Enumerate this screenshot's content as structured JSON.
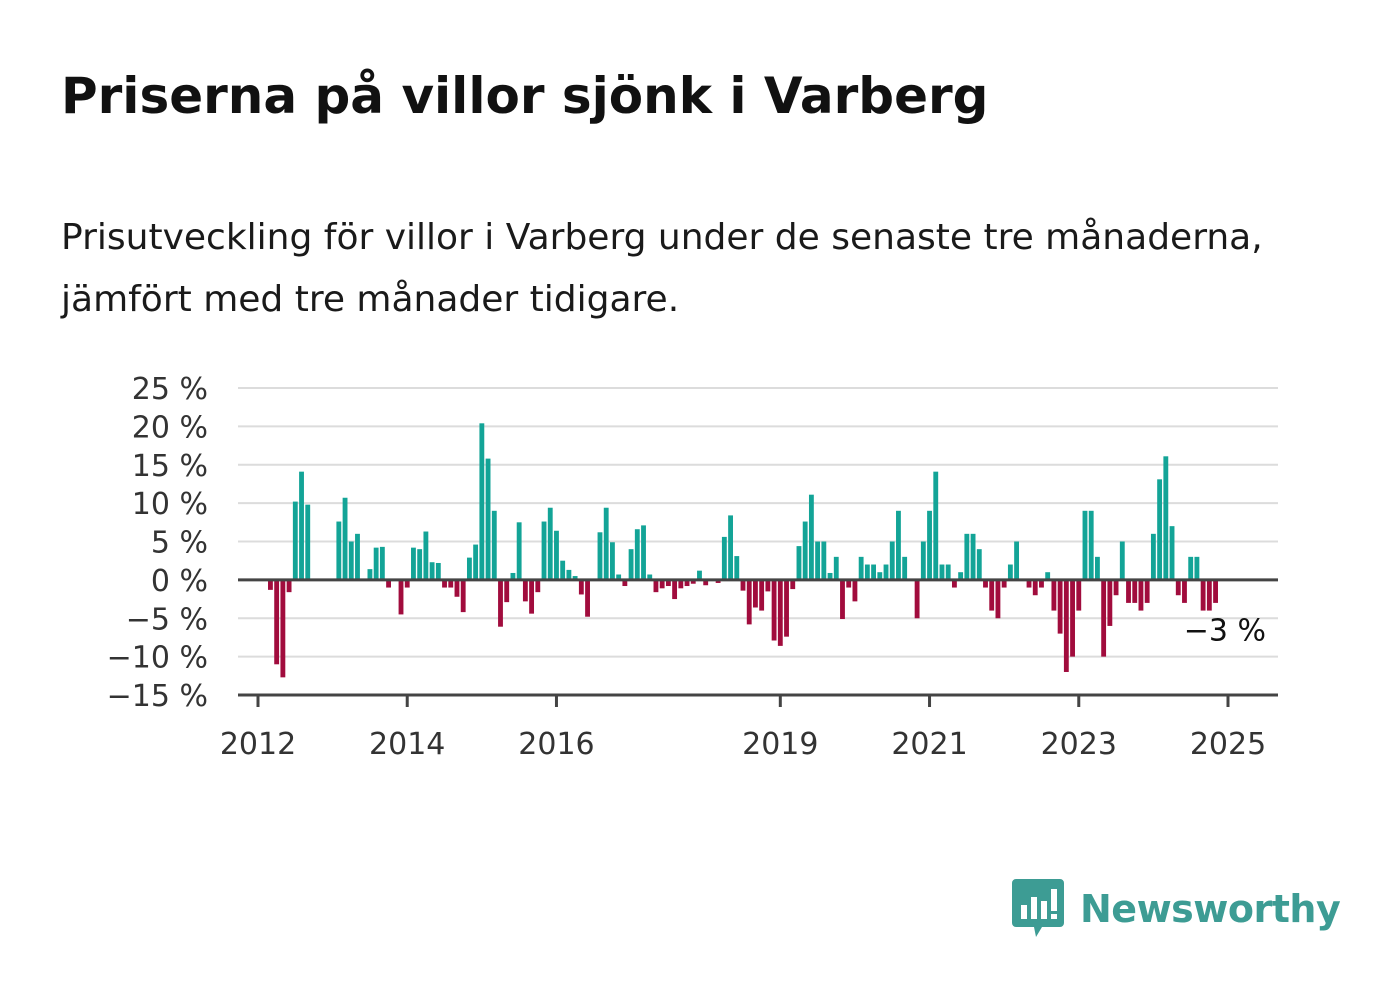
{
  "title": "Priserna på villor sjönk i Varberg",
  "subtitle": "Prisutveckling för villor i Varberg under de senaste tre månaderna, jämfört med tre månader tidigare.",
  "brand": {
    "name": "Newsworthy",
    "icon": "newsworthy-chart-bubble-icon",
    "color": "#3d9c94"
  },
  "chart_data": {
    "type": "bar",
    "x_start": "2012-03",
    "x_step": "month",
    "values": [
      -1.3,
      -11,
      -12.7,
      -1.6,
      10.2,
      14.1,
      9.8,
      0,
      0,
      0,
      0,
      7.6,
      10.7,
      5,
      6,
      0,
      1.4,
      4.2,
      4.3,
      -1,
      0,
      -4.5,
      -1,
      4.2,
      4,
      6.3,
      2.3,
      2.2,
      -1,
      -1,
      -2.2,
      -4.2,
      2.9,
      4.6,
      20.4,
      15.8,
      9,
      -6.1,
      -2.9,
      0.9,
      7.5,
      -2.8,
      -4.4,
      -1.6,
      7.6,
      9.4,
      6.4,
      2.5,
      1.3,
      0.5,
      -1.9,
      -4.8,
      0,
      6.2,
      9.4,
      4.9,
      0.7,
      -0.8,
      4,
      6.6,
      7.1,
      0.7,
      -1.6,
      -1.1,
      -0.8,
      -2.5,
      -1.1,
      -0.8,
      -0.5,
      1.2,
      -0.7,
      0,
      -0.4,
      5.6,
      8.4,
      3.1,
      -1.4,
      -5.8,
      -3.6,
      -4,
      -1.5,
      -7.9,
      -8.6,
      -7.4,
      -1.2,
      4.4,
      7.6,
      11.1,
      5,
      5,
      0.9,
      3,
      -5.1,
      -1,
      -2.8,
      3,
      2,
      2,
      1,
      2,
      5,
      9,
      3,
      0,
      -5,
      5,
      9,
      14.1,
      2,
      2,
      -1,
      1,
      6,
      6,
      4,
      -1,
      -4,
      -5,
      -1,
      2,
      5,
      0,
      -1,
      -2,
      -1,
      1,
      -4,
      -7,
      -12,
      -10,
      -4,
      9,
      9,
      3,
      -10,
      -6,
      -2,
      5,
      -3,
      -3,
      -4,
      -3,
      6,
      13.1,
      16.1,
      7,
      -2,
      -3,
      3,
      3,
      -4,
      -4,
      -3
    ],
    "last_value_label": "−3 %",
    "ylim": [
      -15,
      25
    ],
    "yticks": [
      -15,
      -10,
      -5,
      0,
      5,
      10,
      15,
      20,
      25
    ],
    "ytick_labels": [
      "−15 %",
      "−10 %",
      "−5 %",
      "0 %",
      "5 %",
      "10 %",
      "15 %",
      "20 %",
      "25 %"
    ],
    "xtick_labels": [
      "2012",
      "2014",
      "2016",
      "2019",
      "2021",
      "2023",
      "2025"
    ],
    "xtick_dates": [
      "2012-01",
      "2014-01",
      "2016-01",
      "2019-01",
      "2021-01",
      "2023-01",
      "2025-01"
    ],
    "grid": true,
    "colors": {
      "positive": "#13a497",
      "negative": "#a10c3d",
      "grid": "#dcdcdc",
      "zero_line": "#444444",
      "axis": "#444444"
    }
  }
}
